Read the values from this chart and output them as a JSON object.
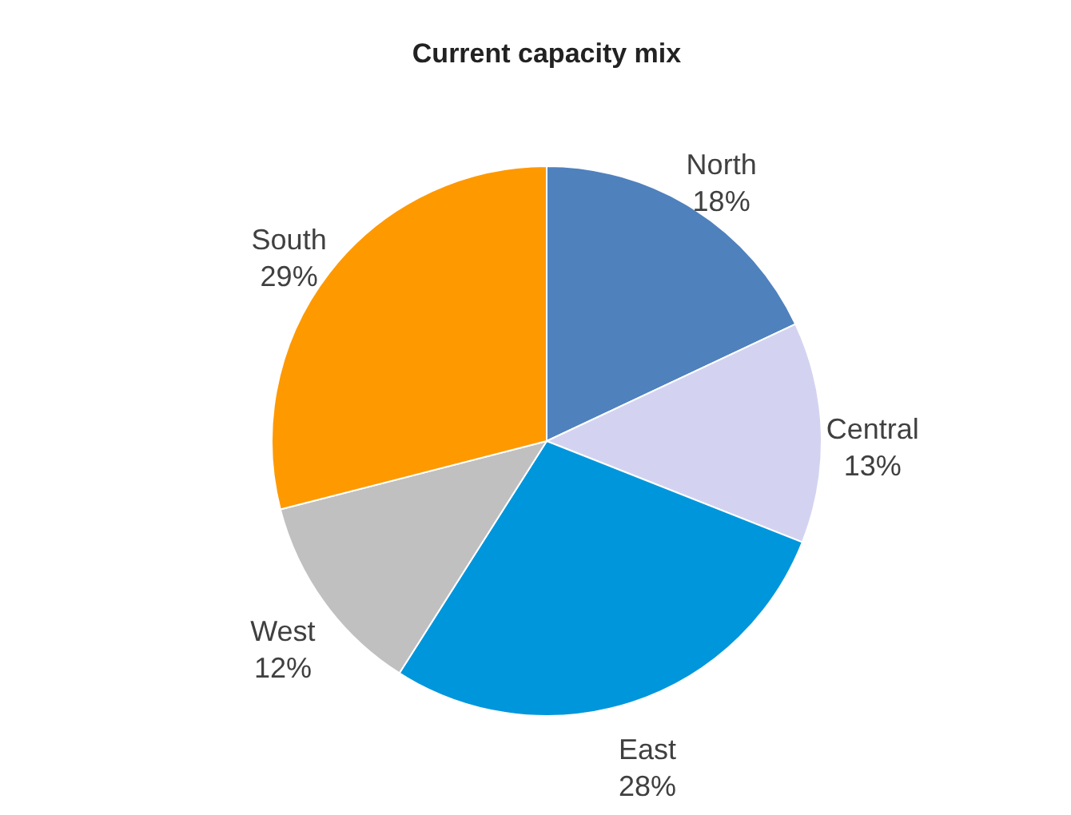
{
  "chart_data": {
    "type": "pie",
    "title": "Current capacity  mix",
    "categories": [
      "North",
      "Central",
      "East",
      "West",
      "South"
    ],
    "values": [
      18,
      13,
      28,
      12,
      29
    ],
    "value_labels": [
      "18%",
      "13%",
      "28%",
      "12%",
      "29%"
    ],
    "colors": [
      "#4f81bd",
      "#d3d3f1",
      "#0096dc",
      "#c0c0c0",
      "#ff9900"
    ],
    "legend": false
  }
}
